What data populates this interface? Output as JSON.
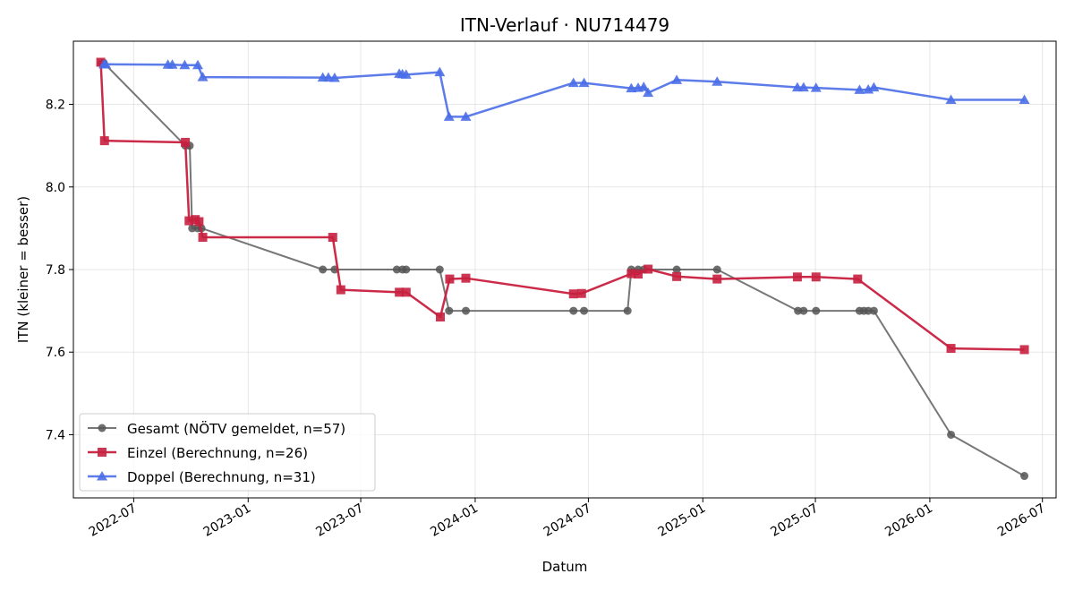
{
  "chart_data": {
    "type": "line",
    "title": "ITN-Verlauf · NU714479",
    "xlabel": "Datum",
    "ylabel": "ITN  (kleiner = besser)",
    "xlim": [
      "2022-03-26",
      "2026-07-23"
    ],
    "ylim": [
      7.247,
      8.353
    ],
    "x_ticks": [
      {
        "date": "2022-07-01",
        "label": "2022-07"
      },
      {
        "date": "2023-01-01",
        "label": "2023-01"
      },
      {
        "date": "2023-07-01",
        "label": "2023-07"
      },
      {
        "date": "2024-01-01",
        "label": "2024-01"
      },
      {
        "date": "2024-07-01",
        "label": "2024-07"
      },
      {
        "date": "2025-01-01",
        "label": "2025-01"
      },
      {
        "date": "2025-07-01",
        "label": "2025-07"
      },
      {
        "date": "2026-01-01",
        "label": "2026-01"
      },
      {
        "date": "2026-07-01",
        "label": "2026-07"
      }
    ],
    "y_ticks": [
      {
        "value": 7.4,
        "label": "7.4"
      },
      {
        "value": 7.6,
        "label": "7.6"
      },
      {
        "value": 7.8,
        "label": "7.8"
      },
      {
        "value": 8.0,
        "label": "8.0"
      },
      {
        "value": 8.2,
        "label": "8.2"
      }
    ],
    "grid": true,
    "legend_position": "bottom-left",
    "series": [
      {
        "name": "Gesamt (NÖTV gemeldet, n=57)",
        "color": "#555555",
        "marker": "circle",
        "points": [
          [
            "2022-05-10",
            8.3
          ],
          [
            "2022-05-14",
            8.3
          ],
          [
            "2022-09-22",
            8.1
          ],
          [
            "2022-09-29",
            8.1
          ],
          [
            "2022-10-03",
            7.9
          ],
          [
            "2022-10-12",
            7.9
          ],
          [
            "2022-10-18",
            7.9
          ],
          [
            "2023-05-01",
            7.8
          ],
          [
            "2023-05-20",
            7.8
          ],
          [
            "2023-08-28",
            7.8
          ],
          [
            "2023-09-06",
            7.8
          ],
          [
            "2023-09-12",
            7.8
          ],
          [
            "2023-11-05",
            7.8
          ],
          [
            "2023-11-20",
            7.7
          ],
          [
            "2023-12-17",
            7.7
          ],
          [
            "2024-06-07",
            7.7
          ],
          [
            "2024-06-24",
            7.7
          ],
          [
            "2024-09-02",
            7.7
          ],
          [
            "2024-09-08",
            7.8
          ],
          [
            "2024-09-19",
            7.8
          ],
          [
            "2024-09-28",
            7.8
          ],
          [
            "2024-11-20",
            7.8
          ],
          [
            "2025-01-24",
            7.8
          ],
          [
            "2025-06-03",
            7.7
          ],
          [
            "2025-06-12",
            7.7
          ],
          [
            "2025-07-02",
            7.7
          ],
          [
            "2025-09-10",
            7.7
          ],
          [
            "2025-09-17",
            7.7
          ],
          [
            "2025-09-24",
            7.7
          ],
          [
            "2025-10-03",
            7.7
          ],
          [
            "2026-02-04",
            7.4
          ],
          [
            "2026-06-02",
            7.3
          ]
        ]
      },
      {
        "name": "Einzel (Berechnung, n=26)",
        "color": "#c8203f",
        "marker": "square",
        "points": [
          [
            "2022-05-09",
            8.302
          ],
          [
            "2022-05-15",
            8.112
          ],
          [
            "2022-09-22",
            8.108
          ],
          [
            "2022-09-28",
            7.918
          ],
          [
            "2022-10-08",
            7.921
          ],
          [
            "2022-10-14",
            7.916
          ],
          [
            "2022-10-20",
            7.878
          ],
          [
            "2023-05-17",
            7.878
          ],
          [
            "2023-05-30",
            7.751
          ],
          [
            "2023-09-01",
            7.745
          ],
          [
            "2023-09-12",
            7.745
          ],
          [
            "2023-11-06",
            7.685
          ],
          [
            "2023-11-21",
            7.777
          ],
          [
            "2023-12-17",
            7.779
          ],
          [
            "2024-06-07",
            7.741
          ],
          [
            "2024-06-20",
            7.742
          ],
          [
            "2024-09-08",
            7.79
          ],
          [
            "2024-09-19",
            7.789
          ],
          [
            "2024-10-05",
            7.801
          ],
          [
            "2024-11-20",
            7.783
          ],
          [
            "2025-01-24",
            7.777
          ],
          [
            "2025-06-02",
            7.782
          ],
          [
            "2025-07-02",
            7.782
          ],
          [
            "2025-09-07",
            7.777
          ],
          [
            "2026-02-04",
            7.609
          ],
          [
            "2026-06-02",
            7.606
          ]
        ]
      },
      {
        "name": "Doppel (Berechnung, n=31)",
        "color": "#4a6ee8",
        "marker": "triangle",
        "points": [
          [
            "2022-05-14",
            8.297
          ],
          [
            "2022-05-17",
            8.297
          ],
          [
            "2022-08-25",
            8.296
          ],
          [
            "2022-09-01",
            8.296
          ],
          [
            "2022-09-21",
            8.295
          ],
          [
            "2022-10-12",
            8.295
          ],
          [
            "2022-10-20",
            8.266
          ],
          [
            "2023-05-01",
            8.265
          ],
          [
            "2023-05-10",
            8.265
          ],
          [
            "2023-05-20",
            8.264
          ],
          [
            "2023-09-01",
            8.274
          ],
          [
            "2023-09-06",
            8.273
          ],
          [
            "2023-09-12",
            8.272
          ],
          [
            "2023-11-05",
            8.278
          ],
          [
            "2023-11-20",
            8.17
          ],
          [
            "2023-12-17",
            8.17
          ],
          [
            "2024-06-07",
            8.252
          ],
          [
            "2024-06-24",
            8.252
          ],
          [
            "2024-09-08",
            8.239
          ],
          [
            "2024-09-19",
            8.24
          ],
          [
            "2024-09-28",
            8.242
          ],
          [
            "2024-10-05",
            8.228
          ],
          [
            "2024-11-20",
            8.259
          ],
          [
            "2025-01-24",
            8.255
          ],
          [
            "2025-06-02",
            8.241
          ],
          [
            "2025-06-12",
            8.241
          ],
          [
            "2025-07-02",
            8.24
          ],
          [
            "2025-09-10",
            8.235
          ],
          [
            "2025-09-24",
            8.236
          ],
          [
            "2025-10-03",
            8.241
          ],
          [
            "2026-02-04",
            8.211
          ],
          [
            "2026-06-02",
            8.211
          ]
        ]
      }
    ]
  }
}
